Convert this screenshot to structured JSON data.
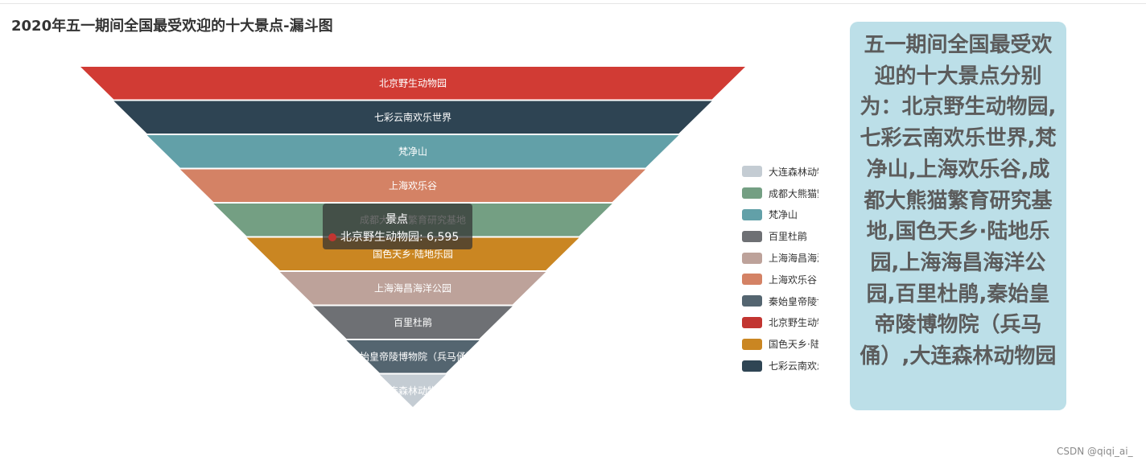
{
  "title": "2020年五一期间全国最受欢迎的十大景点-漏斗图",
  "chart_data": {
    "type": "funnel",
    "sort": "descending",
    "categories": [
      "北京野生动物园",
      "七彩云南欢乐世界",
      "梵净山",
      "上海欢乐谷",
      "成都大熊猫繁育研究基地",
      "国色天乡·陆地乐园",
      "上海海昌海洋公园",
      "百里杜鹃",
      "秦始皇帝陵博物院（兵马俑）",
      "大连森林动物园"
    ],
    "colors": [
      "#d13b34",
      "#2e4453",
      "#62a0a8",
      "#d48265",
      "#749f83",
      "#ca8622",
      "#bda29a",
      "#6e7074",
      "#546570",
      "#c4ccd3"
    ],
    "legend": {
      "placement": "right",
      "items": [
        {
          "label": "大连森林动物园",
          "color": "#c4ccd3"
        },
        {
          "label": "成都大熊猫繁育研究基地",
          "color": "#749f83"
        },
        {
          "label": "梵净山",
          "color": "#62a0a8"
        },
        {
          "label": "百里杜鹃",
          "color": "#6e7074"
        },
        {
          "label": "上海海昌海洋公园",
          "color": "#bda29a"
        },
        {
          "label": "上海欢乐谷",
          "color": "#d48265"
        },
        {
          "label": "秦始皇帝陵博物院（兵马俑）",
          "color": "#546570"
        },
        {
          "label": "北京野生动物园",
          "color": "#c23531"
        },
        {
          "label": "国色天乡·陆地乐园",
          "color": "#ca8622"
        },
        {
          "label": "七彩云南欢乐世界",
          "color": "#2f4554"
        }
      ]
    },
    "tooltip": {
      "series_name": "景点",
      "text": "北京野生动物园: 6,595",
      "value": 6595,
      "color": "#c23531"
    }
  },
  "summary": "五一期间全国最受欢迎的十大景点分别为：北京野生动物园,七彩云南欢乐世界,梵净山,上海欢乐谷,成都大熊猫繁育研究基地,国色天乡·陆地乐园,上海海昌海洋公园,百里杜鹃,秦始皇帝陵博物院（兵马俑）,大连森林动物园",
  "watermark": "CSDN @qiqi_ai_"
}
